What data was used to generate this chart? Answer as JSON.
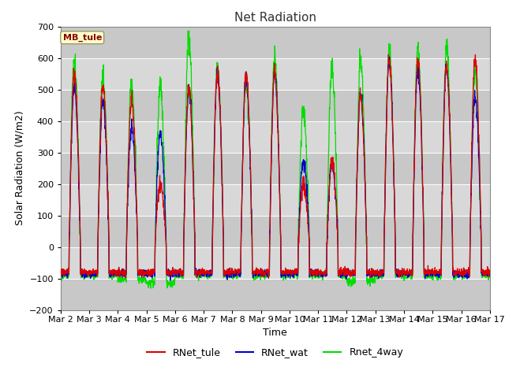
{
  "title": "Net Radiation",
  "ylabel": "Solar Radiation (W/m2)",
  "xlabel": "Time",
  "ylim": [
    -200,
    700
  ],
  "yticks": [
    -200,
    -100,
    0,
    100,
    200,
    300,
    400,
    500,
    600,
    700
  ],
  "xtick_labels": [
    "Mar 2",
    "Mar 3",
    "Mar 4",
    "Mar 5",
    "Mar 6",
    "Mar 7",
    "Mar 8",
    "Mar 9",
    "Mar 10",
    "Mar 11",
    "Mar 12",
    "Mar 13",
    "Mar 14",
    "Mar 15",
    "Mar 16",
    "Mar 17"
  ],
  "station_label": "MB_tule",
  "legend_entries": [
    "RNet_tule",
    "RNet_wat",
    "Rnet_4way"
  ],
  "line_colors": [
    "#dd0000",
    "#0000cc",
    "#00dd00"
  ],
  "fig_bg_color": "#ffffff",
  "plot_bg_color": "#d8d8d8",
  "band_color": "#c8c8c8",
  "grid_color": "#ffffff",
  "n_days": 15,
  "points_per_day": 144,
  "title_fontsize": 11,
  "axis_fontsize": 9,
  "tick_fontsize": 8
}
